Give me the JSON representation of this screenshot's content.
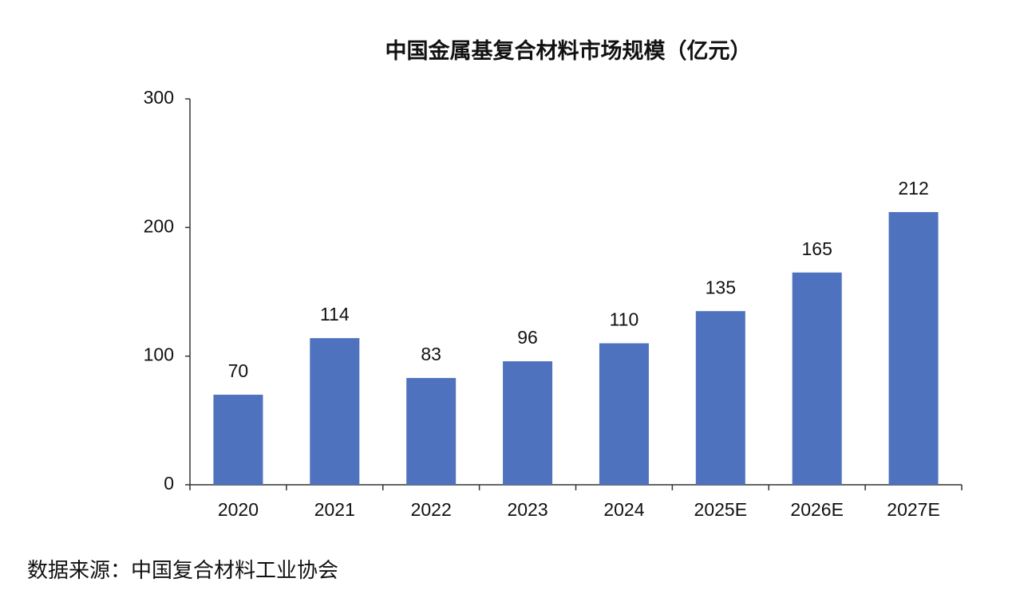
{
  "chart_data": {
    "type": "bar",
    "title": "中国金属基复合材料市场规模（亿元）",
    "categories": [
      "2020",
      "2021",
      "2022",
      "2023",
      "2024",
      "2025E",
      "2026E",
      "2027E"
    ],
    "values": [
      70,
      114,
      83,
      96,
      110,
      135,
      165,
      212
    ],
    "color": "#4f72be",
    "ylim": [
      0,
      300
    ],
    "yticks": [
      0,
      100,
      200,
      300
    ],
    "grid": false,
    "source": "数据来源：中国复合材料工业协会"
  }
}
